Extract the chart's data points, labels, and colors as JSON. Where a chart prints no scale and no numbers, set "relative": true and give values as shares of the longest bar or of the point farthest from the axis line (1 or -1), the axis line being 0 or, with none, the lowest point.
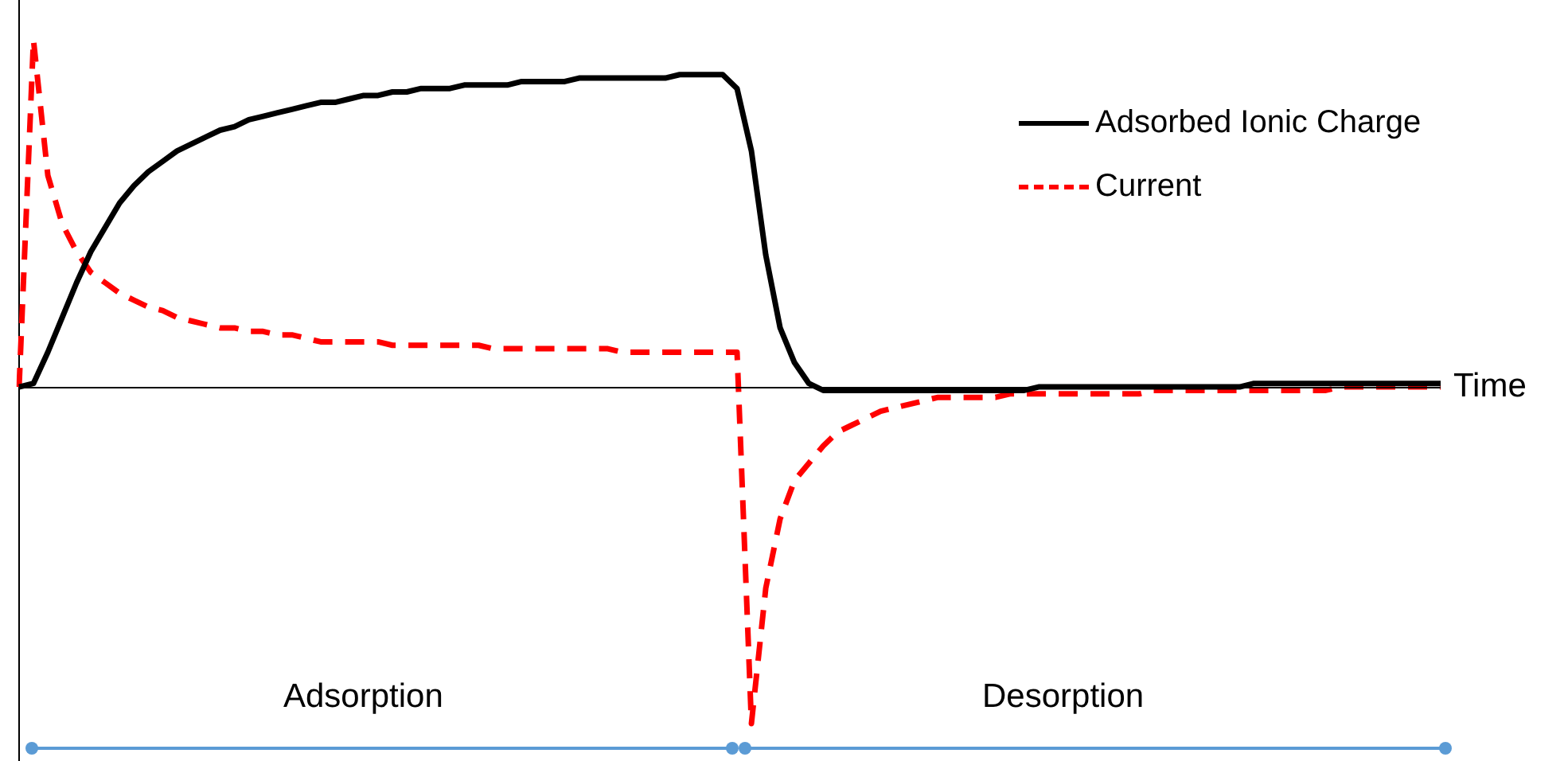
{
  "chart_data": {
    "type": "line",
    "relative": true,
    "xlabel": "Time",
    "legend": "top right",
    "marker": "none",
    "grid": false,
    "categories": [
      null,
      null,
      null,
      null,
      null,
      null,
      null,
      null,
      null,
      null,
      null,
      null,
      null,
      null,
      null,
      null,
      null,
      null,
      null,
      null,
      null,
      null,
      null,
      null,
      null,
      null,
      null,
      null,
      null,
      null,
      null,
      null,
      null,
      null,
      null,
      null,
      null,
      null,
      null,
      null,
      null,
      null,
      null,
      null,
      null,
      null,
      null,
      null,
      null,
      null,
      null,
      null,
      null,
      null,
      null,
      null,
      null,
      null,
      null,
      null,
      null,
      null,
      null,
      null,
      null,
      null,
      null,
      null,
      null,
      null,
      null,
      null,
      null,
      null,
      null,
      null,
      null,
      null,
      null,
      null,
      null,
      null,
      null,
      null,
      null,
      null,
      null,
      null,
      null,
      null,
      null,
      null,
      null,
      null,
      null,
      null,
      null,
      null,
      null,
      null
    ],
    "series": [
      {
        "name": "Adsorbed Ionic Charge",
        "color": "#000000",
        "line_style": "solid",
        "values": [
          0,
          0.01,
          0.1,
          0.2,
          0.3,
          0.39,
          0.46,
          0.53,
          0.58,
          0.62,
          0.65,
          0.68,
          0.7,
          0.72,
          0.74,
          0.75,
          0.77,
          0.78,
          0.79,
          0.8,
          0.81,
          0.82,
          0.82,
          0.83,
          0.84,
          0.84,
          0.85,
          0.85,
          0.86,
          0.86,
          0.86,
          0.87,
          0.87,
          0.87,
          0.87,
          0.88,
          0.88,
          0.88,
          0.88,
          0.89,
          0.89,
          0.89,
          0.89,
          0.89,
          0.89,
          0.89,
          0.9,
          0.9,
          0.9,
          0.9,
          0.86,
          0.68,
          0.38,
          0.17,
          0.07,
          0.01,
          -0.01,
          -0.01,
          -0.01,
          -0.01,
          -0.01,
          -0.01,
          -0.01,
          -0.01,
          -0.01,
          -0.01,
          -0.01,
          -0.01,
          -0.01,
          -0.01,
          -0.01,
          0,
          0,
          0,
          0,
          0,
          0,
          0,
          0,
          0,
          0,
          0,
          0,
          0,
          0,
          0,
          0.01,
          0.01,
          0.01,
          0.01,
          0.01,
          0.01,
          0.01,
          0.01,
          0.01,
          0.01,
          0.01,
          0.01,
          0.01,
          0.01
        ]
      },
      {
        "name": "Current",
        "color": "#ff0000",
        "line_style": "dashed",
        "values": [
          0,
          1,
          0.61,
          0.47,
          0.39,
          0.33,
          0.3,
          0.27,
          0.25,
          0.23,
          0.22,
          0.2,
          0.19,
          0.18,
          0.17,
          0.17,
          0.16,
          0.16,
          0.15,
          0.15,
          0.14,
          0.13,
          0.13,
          0.13,
          0.13,
          0.13,
          0.12,
          0.12,
          0.12,
          0.12,
          0.12,
          0.12,
          0.12,
          0.11,
          0.11,
          0.11,
          0.11,
          0.11,
          0.11,
          0.11,
          0.11,
          0.11,
          0.1,
          0.1,
          0.1,
          0.1,
          0.1,
          0.1,
          0.1,
          0.1,
          0.1,
          -0.97,
          -0.58,
          -0.38,
          -0.27,
          -0.22,
          -0.17,
          -0.13,
          -0.11,
          -0.09,
          -0.07,
          -0.06,
          -0.05,
          -0.04,
          -0.03,
          -0.03,
          -0.03,
          -0.03,
          -0.03,
          -0.02,
          -0.02,
          -0.02,
          -0.02,
          -0.02,
          -0.02,
          -0.02,
          -0.02,
          -0.02,
          -0.02,
          -0.01,
          -0.01,
          -0.01,
          -0.01,
          -0.01,
          -0.01,
          -0.01,
          -0.01,
          -0.01,
          -0.01,
          -0.01,
          -0.01,
          -0.01,
          0,
          0,
          0,
          0,
          0,
          0,
          0,
          0
        ]
      }
    ],
    "annotations": [
      "Adsorption",
      "Desorption"
    ]
  }
}
